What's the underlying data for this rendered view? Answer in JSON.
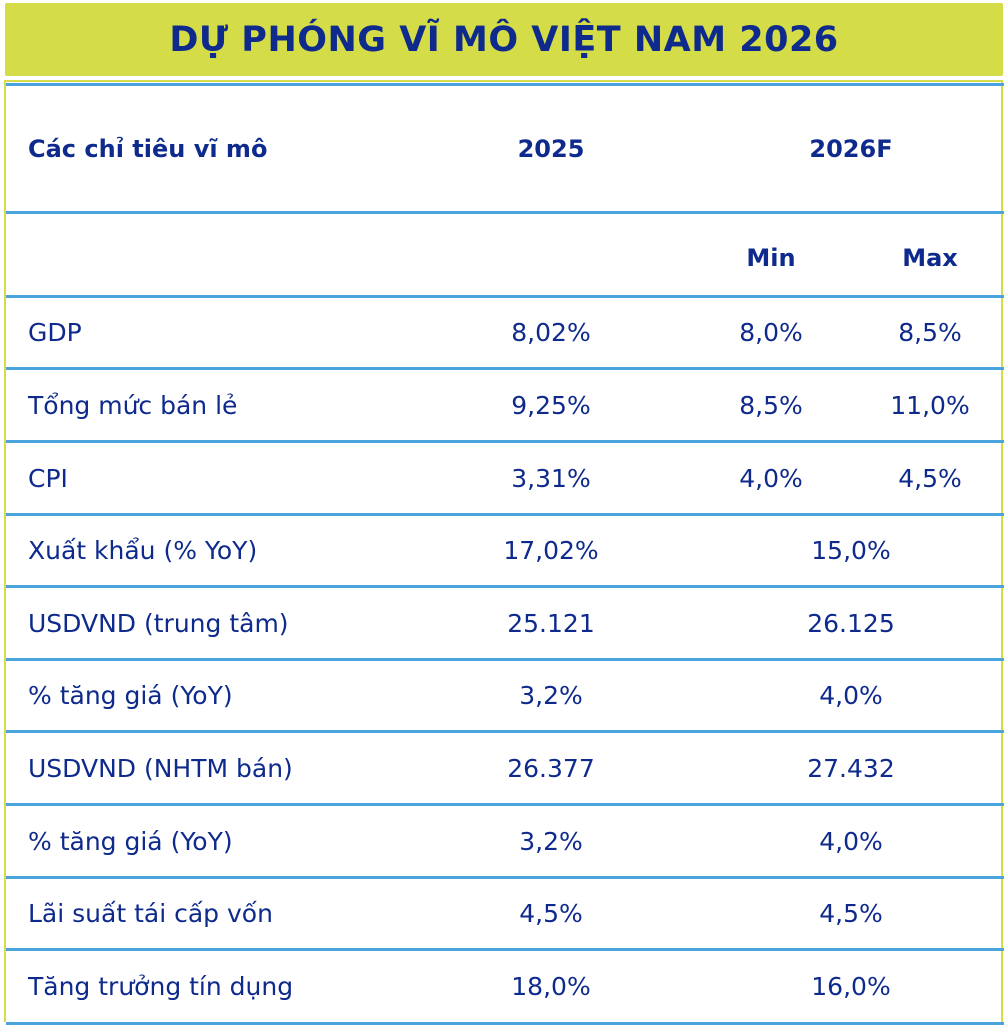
{
  "title": "DỰ PHÓNG VĨ MÔ VIỆT NAM 2026",
  "colors": {
    "banner": "#d4dc48",
    "text": "#0e2a8c",
    "rule": "#4aa3dc"
  },
  "header": {
    "indicator": "Các chỉ tiêu vĩ mô",
    "y2025": "2025",
    "y2026": "2026F",
    "min": "Min",
    "max": "Max"
  },
  "rows": [
    {
      "label": "GDP",
      "y2025": "8,02%",
      "min": "8,0%",
      "max": "8,5%"
    },
    {
      "label": "Tổng mức bán lẻ",
      "y2025": "9,25%",
      "min": "8,5%",
      "max": "11,0%"
    },
    {
      "label": "CPI",
      "y2025": "3,31%",
      "min": "4,0%",
      "max": "4,5%"
    },
    {
      "label": "Xuất khẩu (% YoY)",
      "y2025": "17,02%",
      "y2026": "15,0%"
    },
    {
      "label": "USDVND (trung tâm)",
      "y2025": "25.121",
      "y2026": "26.125"
    },
    {
      "label": "% tăng giá (YoY)",
      "y2025": "3,2%",
      "y2026": "4,0%"
    },
    {
      "label": "USDVND (NHTM bán)",
      "y2025": "26.377",
      "y2026": "27.432"
    },
    {
      "label": "% tăng giá (YoY)",
      "y2025": "3,2%",
      "y2026": "4,0%"
    },
    {
      "label": "Lãi suất tái cấp vốn",
      "y2025": "4,5%",
      "y2026": "4,5%"
    },
    {
      "label": "Tăng trưởng tín dụng",
      "y2025": "18,0%",
      "y2026": "16,0%"
    }
  ]
}
